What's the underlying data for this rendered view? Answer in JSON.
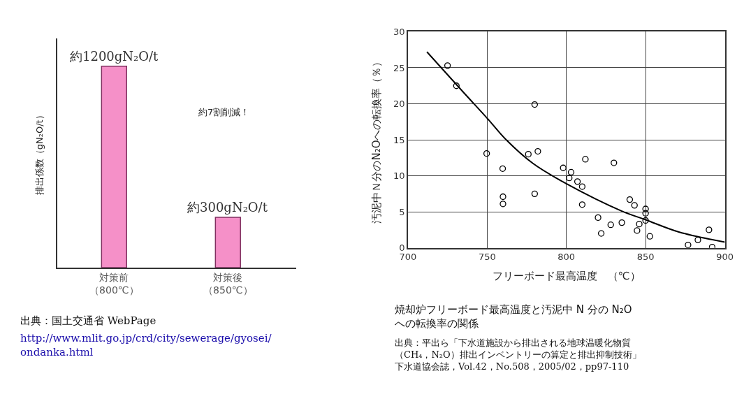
{
  "chart_data": [
    {
      "type": "bar",
      "categories": [
        "対策前（800℃）",
        "対策後（850℃）"
      ],
      "values": [
        1200,
        300
      ],
      "value_labels": [
        "約1200gN₂O/t",
        "約300gN₂O/t"
      ],
      "colors": [
        "#f590c8",
        "#f590c8"
      ],
      "ylabel": "排出係数（gN₂O/t）",
      "tick_labels": "x",
      "grid": false,
      "annotations": [
        "約7割削減！",
        "出典：国土交通省 WebPage",
        "http://www.mlit.go.jp/crd/city/sewerage/gyosei/\nondanka.html"
      ]
    },
    {
      "type": "scatter",
      "xlabel": "フリーボード最高温度　（℃）",
      "ylabel": "汚泥中Ｎ分のN₂Oへの転換率（％）",
      "xlim": [
        700,
        900
      ],
      "xticks": [
        700,
        750,
        800,
        850,
        900
      ],
      "ylim": [
        0,
        30
      ],
      "yticks": [
        0,
        5,
        10,
        15,
        20,
        25,
        30
      ],
      "grid": true,
      "series": [
        {
          "type": "scatter",
          "color": "#000000",
          "marker": "circle",
          "x": [
            725,
            730.6,
            780,
            749.7,
            759.8,
            760,
            760,
            776,
            782,
            780,
            798,
            803,
            801.8,
            807,
            810,
            810,
            812,
            830,
            820,
            822,
            828,
            835,
            840,
            843,
            850,
            850,
            850,
            846,
            844.6,
            852.7,
            876.8,
            883,
            890,
            892
          ],
          "values": [
            25.3,
            22.5,
            19.9,
            13.1,
            11.0,
            7.1,
            6.1,
            13.0,
            13.4,
            7.5,
            11.1,
            10.5,
            9.7,
            9.2,
            8.5,
            6.0,
            12.3,
            11.8,
            4.2,
            2.0,
            3.2,
            3.5,
            6.7,
            5.9,
            5.4,
            4.8,
            3.8,
            3.3,
            2.4,
            1.6,
            0.4,
            1.1,
            2.5,
            0.1
          ]
        },
        {
          "type": "line",
          "color": "#000000",
          "x": [
            712,
            735,
            750,
            762,
            779,
            800,
            835,
            850,
            871,
            900
          ],
          "values": [
            27.2,
            21.6,
            18.0,
            15.0,
            11.7,
            8.9,
            5.1,
            3.9,
            2.2,
            0.8
          ]
        }
      ],
      "annotations": [
        "焼却炉フリーボード最高温度と汚泥中 N 分の N₂Oへの転換率の関係",
        "出典：平出ら「下水道施設から排出される地球温暖化物質（CH₄，N₂O）排出インベントリーの算定と排出抑制技術」下水道協会誌，Vol.42，No.508，2005/02，pp97-110"
      ]
    }
  ]
}
